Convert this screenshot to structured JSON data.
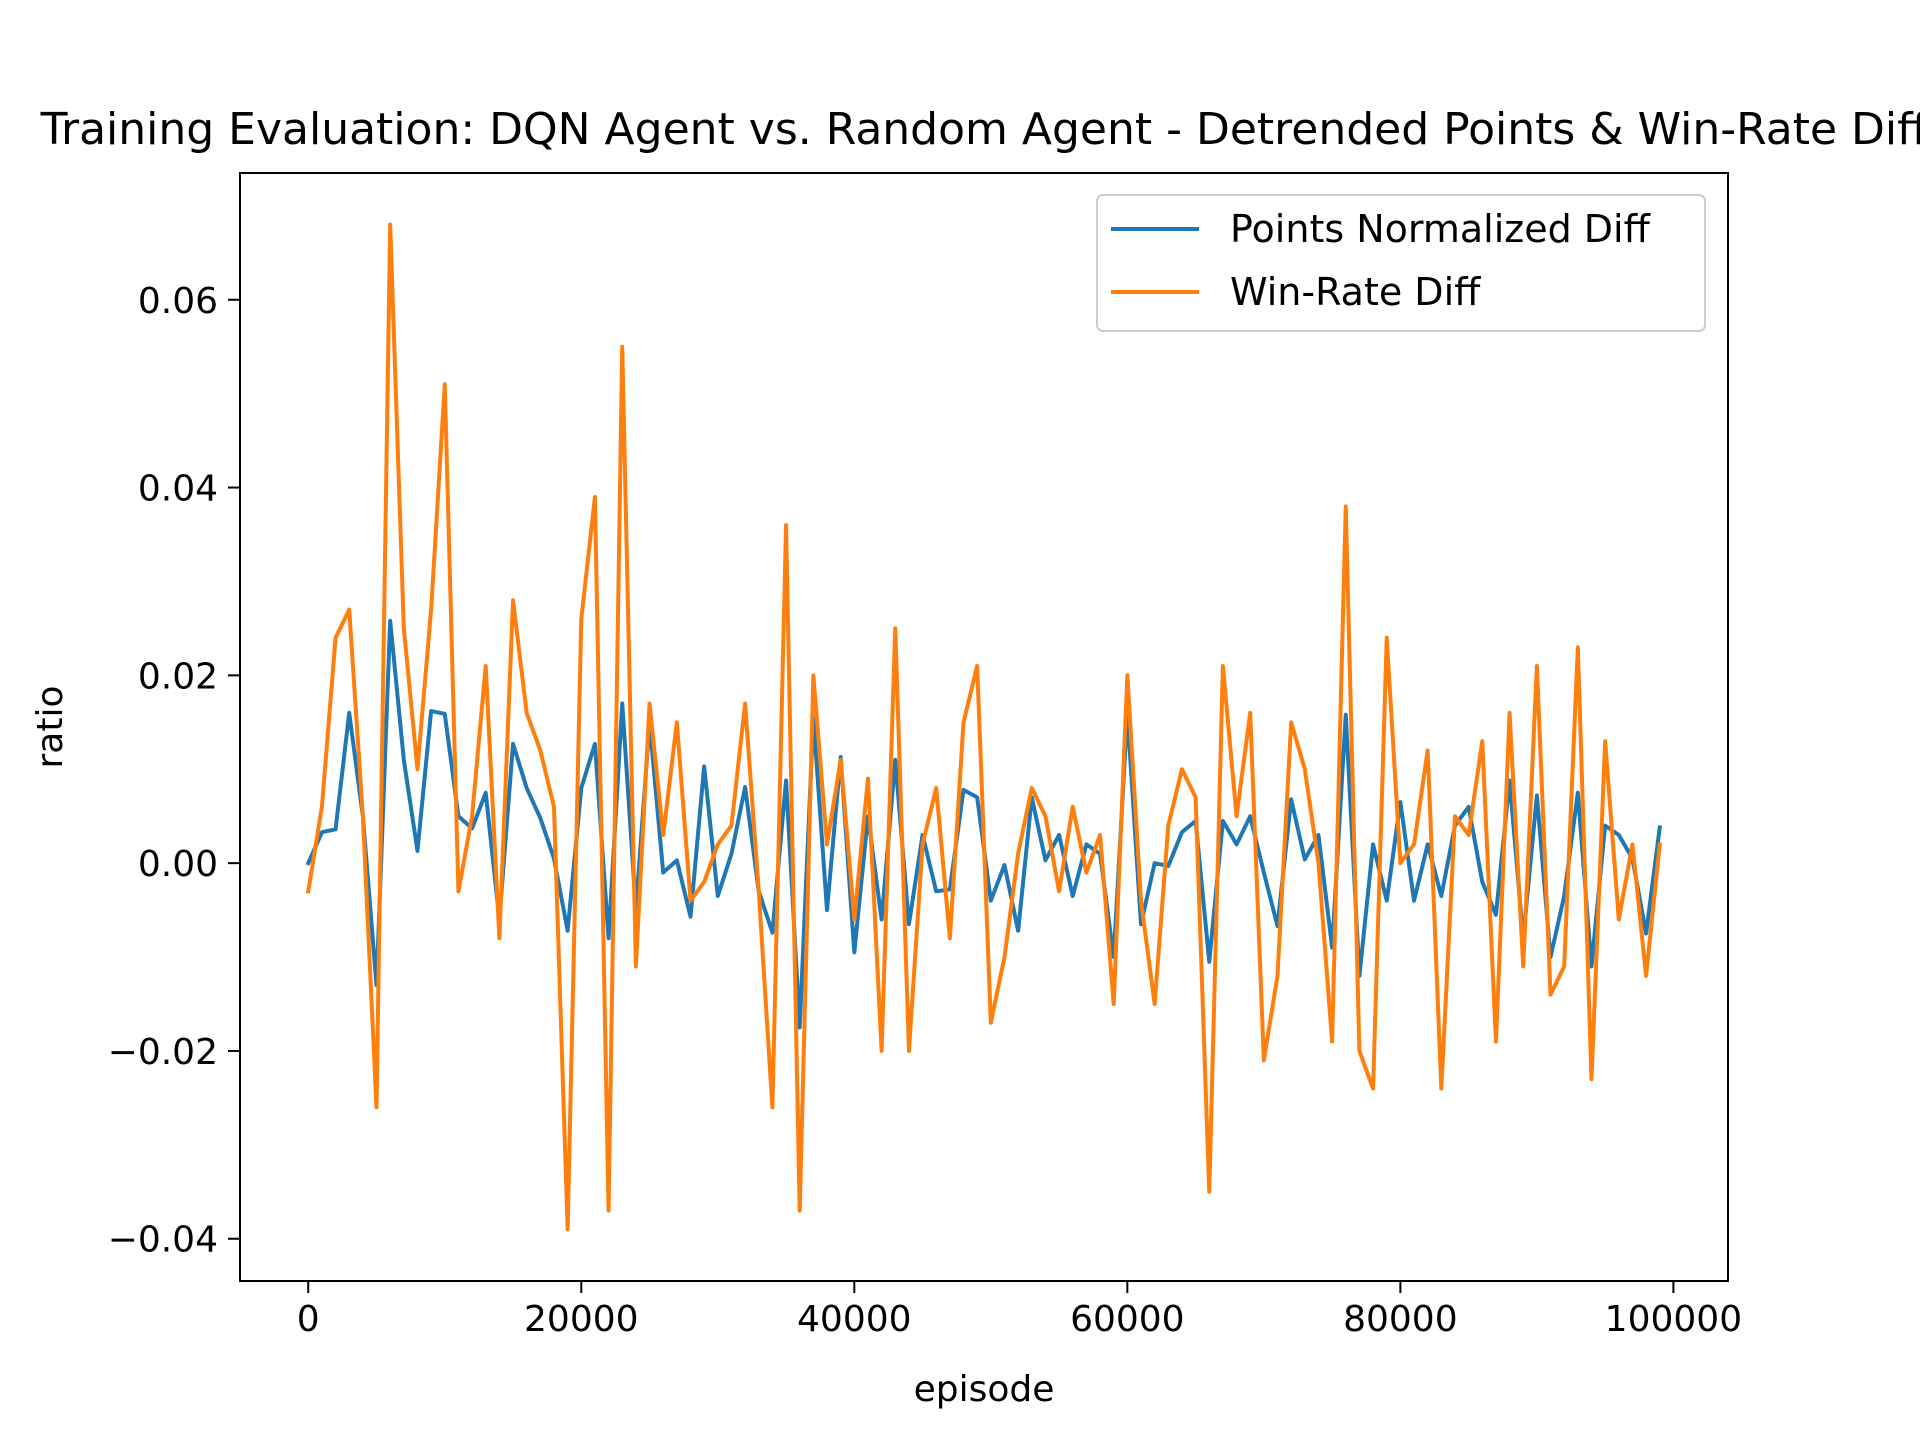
{
  "chart_data": {
    "type": "line",
    "title": "Training Evaluation: DQN Agent vs. Random Agent - Detrended Points & Win-Rate Diff",
    "xlabel": "episode",
    "ylabel": "ratio",
    "xlim": [
      -5000,
      104000
    ],
    "ylim": [
      -0.0445,
      0.0735
    ],
    "x_ticks": [
      0,
      20000,
      40000,
      60000,
      80000,
      100000
    ],
    "y_ticks": [
      -0.04,
      -0.02,
      0.0,
      0.02,
      0.04,
      0.06
    ],
    "x_tick_labels": [
      "0",
      "20000",
      "40000",
      "60000",
      "80000",
      "100000"
    ],
    "y_tick_labels": [
      "−0.04",
      "−0.02",
      "0.00",
      "0.02",
      "0.04",
      "0.06"
    ],
    "grid": false,
    "legend_position": "top-right",
    "x_start": 0,
    "x_step": 1000,
    "series": [
      {
        "name": "Points Normalized Diff",
        "color": "#1f77b4",
        "values": [
          0.0,
          0.0033,
          0.0036,
          0.016,
          0.005,
          -0.013,
          0.0258,
          0.011,
          0.0013,
          0.0162,
          0.0159,
          0.005,
          0.0037,
          0.0075,
          -0.006,
          0.0127,
          0.008,
          0.0048,
          0.0005,
          -0.0072,
          0.008,
          0.0127,
          -0.008,
          0.017,
          -0.005,
          0.015,
          -0.001,
          0.0003,
          -0.0057,
          0.0103,
          -0.0035,
          0.001,
          0.0081,
          -0.003,
          -0.0074,
          0.0088,
          -0.0175,
          0.0155,
          -0.005,
          0.0113,
          -0.0095,
          0.005,
          -0.006,
          0.011,
          -0.0065,
          0.003,
          -0.003,
          -0.0028,
          0.0078,
          0.007,
          -0.004,
          -0.0002,
          -0.0072,
          0.007,
          0.0003,
          0.003,
          -0.0035,
          0.002,
          0.001,
          -0.01,
          0.016,
          -0.0065,
          0.0,
          -0.0003,
          0.0033,
          0.0045,
          -0.0105,
          0.0045,
          0.002,
          0.005,
          -0.001,
          -0.0067,
          0.0068,
          0.0004,
          0.003,
          -0.009,
          0.0158,
          -0.012,
          0.002,
          -0.004,
          0.0065,
          -0.004,
          0.002,
          -0.0035,
          0.004,
          0.006,
          -0.002,
          -0.0055,
          0.0088,
          -0.008,
          0.0072,
          -0.01,
          -0.0035,
          0.0075,
          -0.011,
          0.004,
          0.003,
          0.0005,
          -0.0075,
          0.0038
        ]
      },
      {
        "name": "Win-Rate Diff",
        "color": "#ff7f0e",
        "values": [
          -0.003,
          0.006,
          0.024,
          0.027,
          0.005,
          -0.026,
          0.068,
          0.025,
          0.01,
          0.027,
          0.051,
          -0.003,
          0.005,
          0.021,
          -0.008,
          0.028,
          0.016,
          0.012,
          0.006,
          -0.039,
          0.026,
          0.039,
          -0.037,
          0.055,
          -0.011,
          0.017,
          0.003,
          0.015,
          -0.004,
          -0.002,
          0.002,
          0.004,
          0.017,
          -0.003,
          -0.026,
          0.036,
          -0.037,
          0.02,
          0.002,
          0.011,
          -0.006,
          0.009,
          -0.02,
          0.025,
          -0.02,
          0.002,
          0.008,
          -0.008,
          0.015,
          0.021,
          -0.017,
          -0.01,
          0.001,
          0.008,
          0.005,
          -0.003,
          0.006,
          -0.001,
          0.003,
          -0.015,
          0.02,
          -0.004,
          -0.015,
          0.004,
          0.01,
          0.007,
          -0.035,
          0.021,
          0.005,
          0.016,
          -0.021,
          -0.012,
          0.015,
          0.01,
          0.0,
          -0.019,
          0.038,
          -0.02,
          -0.024,
          0.024,
          0.0,
          0.002,
          0.012,
          -0.024,
          0.005,
          0.003,
          0.013,
          -0.019,
          0.016,
          -0.011,
          0.021,
          -0.014,
          -0.011,
          0.023,
          -0.023,
          0.013,
          -0.006,
          0.002,
          -0.012,
          0.002
        ]
      }
    ]
  }
}
